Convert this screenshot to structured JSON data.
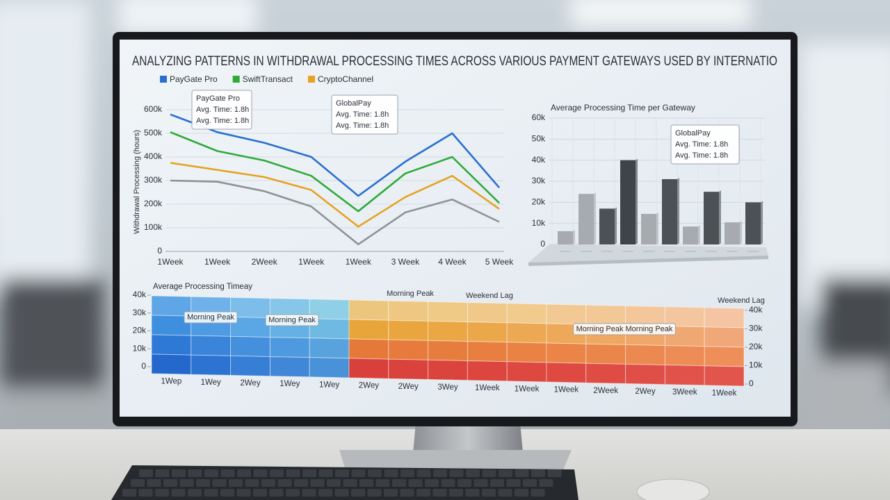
{
  "title": "ANALYZING PATTERNS IN WITHDRAWAL PROCESSING TIMES ACROSS VARIOUS PAYMENT GATEWAYS USED BY INTERNATIO",
  "chart_data": [
    {
      "type": "line",
      "y_label": "Withdrawal Processing (hours)",
      "categories": [
        "1Week",
        "1Week",
        "2Week",
        "1Week",
        "1Week",
        "3 Week",
        "4 Week",
        "5 Week"
      ],
      "series": [
        {
          "name": "PayGate Pro",
          "color": "#2a6fd0",
          "values": [
            580000,
            505000,
            460000,
            400000,
            235000,
            380000,
            500000,
            270000
          ]
        },
        {
          "name": "SwiftTransact",
          "color": "#2eaa3a",
          "values": [
            505000,
            425000,
            385000,
            320000,
            170000,
            330000,
            400000,
            205000
          ]
        },
        {
          "name": "CryptoChannel",
          "color": "#e5a321",
          "values": [
            375000,
            345000,
            315000,
            260000,
            105000,
            230000,
            320000,
            180000
          ]
        },
        {
          "color": "#8e9296",
          "values": [
            300000,
            295000,
            255000,
            190000,
            30000,
            165000,
            220000,
            125000
          ]
        }
      ],
      "ylim": [
        0,
        600000
      ],
      "yticks": [
        0,
        {
          "value": 100000,
          "label": "100k"
        },
        {
          "value": 200000,
          "label": "200k"
        },
        {
          "value": 300000,
          "label": "300k"
        },
        {
          "value": 400000,
          "label": "400k"
        },
        {
          "value": 500000,
          "label": "500k"
        },
        {
          "value": 600000,
          "label": "600k"
        }
      ],
      "grid": true,
      "legend": "top-left",
      "annotations": [
        {
          "lines": [
            "PayGate Pro",
            "Avg. Time: 1.8h",
            "Avg. Time: 1.8h"
          ]
        },
        {
          "lines": [
            "GlobalPay",
            "Avg. Time: 1.8h",
            "Avg. Time: 1.8h"
          ]
        }
      ]
    },
    {
      "type": "bar",
      "title": "Average Processing Time per Gateway",
      "categories": [
        null,
        null,
        null,
        null,
        null,
        null,
        null,
        null,
        null,
        null
      ],
      "values": [
        6300,
        24000,
        17000,
        40000,
        14500,
        31000,
        8500,
        25000,
        10500,
        20000
      ],
      "colors": [
        "#a7abb0",
        "#a7abb0",
        "#4c5156",
        "#3e4449",
        "#a7abb0",
        "#4c5156",
        "#a7abb0",
        "#4c5156",
        "#a7abb0",
        "#4c5156"
      ],
      "ylim": [
        0,
        60000
      ],
      "yticks": [
        0,
        {
          "value": 10000,
          "label": "10k"
        },
        {
          "value": 20000,
          "label": "20k"
        },
        {
          "value": 30000,
          "label": "30k"
        },
        {
          "value": 40000,
          "label": "40k"
        },
        {
          "value": 50000,
          "label": "50k"
        },
        {
          "value": 60000,
          "label": "60k"
        }
      ],
      "grid": true,
      "annotations": [
        {
          "lines": [
            "GlobalPay",
            "Avg. Time: 1.8h",
            "Avg. Time: 1.8h"
          ]
        }
      ]
    },
    {
      "type": "heatmap",
      "title": "Average Processing Timeay",
      "categories": [
        "1Wep",
        "1Wey",
        "2Wey",
        "1Wey",
        "1Wey",
        "2Wey",
        "2Wey",
        "3Wey",
        "1Week",
        "1Week",
        "1Week",
        "2Week",
        "2Wey",
        "3Week",
        "1Week"
      ],
      "cell_colors": [
        [
          "#5ea6e6",
          "#6fb2ea",
          "#7cbde9",
          "#86c6e8",
          "#8fd0e6",
          "#edc67e",
          "#eec882",
          "#efca86",
          "#f0c98a",
          "#f1ca8e",
          "#f2c993",
          "#f3c897",
          "#f4c79b",
          "#f4c6a0",
          "#f5c5a3"
        ],
        [
          "#3f8fdf",
          "#4e9ae3",
          "#5ba6e5",
          "#66b0e5",
          "#6fbae3",
          "#e8a53a",
          "#e9a63e",
          "#eaa744",
          "#eba84b",
          "#eca852",
          "#eda85a",
          "#eea862",
          "#efa86a",
          "#f0a872",
          "#f0a878"
        ],
        [
          "#2f79d6",
          "#3a84da",
          "#4590dd",
          "#4f9ade",
          "#58a3de",
          "#e5793a",
          "#e67b3b",
          "#e77d3d",
          "#e87f40",
          "#e98243",
          "#ea8447",
          "#eb864b",
          "#ec8950",
          "#ed8c55",
          "#ee8f59"
        ],
        [
          "#2468cc",
          "#2d73d1",
          "#377ed5",
          "#4088d7",
          "#4992d8",
          "#d9403c",
          "#da423c",
          "#db443d",
          "#dc463e",
          "#dd4840",
          "#de4a42",
          "#df4c44",
          "#e04f47",
          "#e1524a",
          "#e2554d"
        ]
      ],
      "ylim": [
        0,
        40000
      ],
      "yticks": [
        0,
        {
          "value": 10000,
          "label": "10k"
        },
        {
          "value": 20000,
          "label": "20k"
        },
        {
          "value": 30000,
          "label": "30k"
        },
        {
          "value": 40000,
          "label": "40k"
        }
      ],
      "y2lim": [
        0,
        40000
      ],
      "y2ticks": [
        0,
        {
          "value": 10000,
          "label": "10k"
        },
        {
          "value": 20000,
          "label": "20k"
        },
        {
          "value": 30000,
          "label": "30k"
        },
        {
          "value": 40000,
          "label": "40k"
        }
      ],
      "annotations": [
        "Morning Peak",
        "Morning Peak",
        "Morning Peak",
        "Weekend Lag",
        "Morning Peak Morning Peak",
        "Weekend Lag"
      ]
    }
  ]
}
